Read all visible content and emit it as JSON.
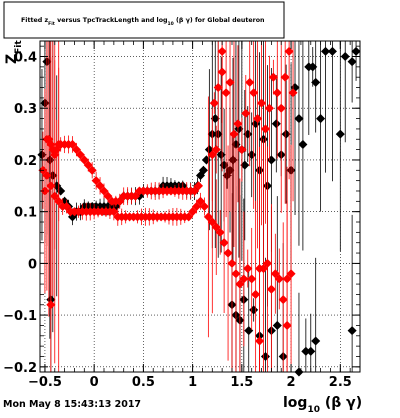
{
  "chart_data": {
    "type": "scatter",
    "title_parts": {
      "a": "Fitted  z",
      "sub": "Fit",
      "b": "  versus  TpcTrackLength and log",
      "sub2": "10",
      "c": " (β γ) for Global deuteron"
    },
    "ylabel_parts": {
      "main": "Z",
      "sub": "Fit"
    },
    "xlabel_parts": {
      "main": "log",
      "sub": "10",
      "rest": " (β γ)"
    },
    "xlim": [
      -0.55,
      2.7
    ],
    "ylim": [
      -0.21,
      0.43
    ],
    "x_ticks": [
      -0.5,
      0,
      0.5,
      1,
      1.5,
      2,
      2.5
    ],
    "x_tick_labels": [
      "−0.5",
      "0",
      "0.5",
      "1",
      "1.5",
      "2",
      "2.5"
    ],
    "y_ticks": [
      -0.2,
      -0.1,
      0,
      0.1,
      0.2,
      0.3,
      0.4
    ],
    "y_tick_labels": [
      "−0.2",
      "−0.1",
      "0",
      "0.1",
      "0.2",
      "0.3",
      "0.4"
    ],
    "grid": true,
    "colors": {
      "series_black": "#000000",
      "series_red": "#ff0000",
      "frame": "#000000"
    },
    "series": [
      {
        "points": [
          [
            -0.53,
            0.21
          ],
          [
            -0.5,
            0.31
          ],
          [
            -0.48,
            0.39
          ],
          [
            -0.45,
            0.2
          ],
          [
            -0.42,
            0.17
          ],
          [
            -0.38,
            0.15
          ],
          [
            -0.34,
            0.14
          ],
          [
            -0.3,
            0.12
          ],
          [
            -0.26,
            0.11
          ],
          [
            -0.22,
            0.09
          ],
          [
            -0.18,
            0.1
          ],
          [
            -0.14,
            0.1
          ],
          [
            -0.1,
            0.11
          ],
          [
            -0.06,
            0.11
          ],
          [
            -0.02,
            0.11
          ],
          [
            0.02,
            0.11
          ],
          [
            0.06,
            0.11
          ],
          [
            0.1,
            0.11
          ],
          [
            0.14,
            0.11
          ],
          [
            0.18,
            0.11
          ],
          [
            0.22,
            0.11
          ],
          [
            0.26,
            0.12
          ],
          [
            0.3,
            0.13
          ],
          [
            0.34,
            0.13
          ],
          [
            0.38,
            0.13
          ],
          [
            0.42,
            0.13
          ],
          [
            0.46,
            0.13
          ],
          [
            0.5,
            0.14
          ],
          [
            0.54,
            0.14
          ],
          [
            0.58,
            0.14
          ],
          [
            0.62,
            0.14
          ],
          [
            0.66,
            0.14
          ],
          [
            0.7,
            0.15
          ],
          [
            0.74,
            0.15
          ],
          [
            0.78,
            0.15
          ],
          [
            0.82,
            0.15
          ],
          [
            0.86,
            0.15
          ],
          [
            0.9,
            0.15
          ],
          [
            0.94,
            0.14
          ],
          [
            0.98,
            0.14
          ],
          [
            1.02,
            0.14
          ],
          [
            1.05,
            0.15
          ],
          [
            1.08,
            0.17
          ],
          [
            1.11,
            0.18
          ],
          [
            1.14,
            0.2
          ],
          [
            1.17,
            0.22
          ],
          [
            1.2,
            0.25
          ],
          [
            1.23,
            0.28
          ],
          [
            1.26,
            0.25
          ],
          [
            1.29,
            0.21
          ],
          [
            1.32,
            0.19
          ],
          [
            1.35,
            0.17
          ],
          [
            1.38,
            0.18
          ],
          [
            1.41,
            0.2
          ],
          [
            1.44,
            0.23
          ],
          [
            1.47,
            0.26
          ],
          [
            1.5,
            0.22
          ],
          [
            1.53,
            0.19
          ],
          [
            1.56,
            0.25
          ],
          [
            1.6,
            0.21
          ],
          [
            1.64,
            0.27
          ],
          [
            1.68,
            0.18
          ],
          [
            1.72,
            0.24
          ],
          [
            1.76,
            0.15
          ],
          [
            1.8,
            0.2
          ],
          [
            1.85,
            0.27
          ],
          [
            1.9,
            0.21
          ],
          [
            1.95,
            0.25
          ],
          [
            2.0,
            0.18
          ],
          [
            2.04,
            0.34
          ],
          [
            2.08,
            0.28
          ],
          [
            2.12,
            0.23
          ],
          [
            2.18,
            0.38
          ],
          [
            2.22,
            0.38
          ],
          [
            2.25,
            0.35
          ],
          [
            2.3,
            0.28
          ],
          [
            2.35,
            0.41
          ],
          [
            2.42,
            0.41
          ],
          [
            2.5,
            0.25
          ],
          [
            2.55,
            0.4
          ],
          [
            2.62,
            0.39
          ],
          [
            2.66,
            0.41
          ],
          [
            -0.44,
            -0.07
          ],
          [
            1.4,
            -0.08
          ],
          [
            1.44,
            -0.1
          ],
          [
            1.48,
            -0.11
          ],
          [
            1.52,
            -0.07
          ],
          [
            1.57,
            -0.13
          ],
          [
            1.62,
            -0.09
          ],
          [
            1.68,
            -0.14
          ],
          [
            1.74,
            -0.18
          ],
          [
            1.8,
            -0.13
          ],
          [
            1.86,
            -0.12
          ],
          [
            1.92,
            -0.18
          ],
          [
            2.08,
            -0.21
          ],
          [
            2.15,
            -0.17
          ],
          [
            2.2,
            -0.17
          ],
          [
            2.25,
            -0.15
          ],
          [
            2.62,
            -0.13
          ]
        ]
      },
      {
        "points": [
          [
            -0.52,
            0.18
          ],
          [
            -0.5,
            0.14
          ],
          [
            -0.48,
            0.24
          ],
          [
            -0.46,
            0.24
          ],
          [
            -0.44,
            0.23
          ],
          [
            -0.42,
            0.22
          ],
          [
            -0.4,
            0.21
          ],
          [
            -0.38,
            0.22
          ],
          [
            -0.36,
            0.23
          ],
          [
            -0.34,
            0.23
          ],
          [
            -0.3,
            0.23
          ],
          [
            -0.26,
            0.23
          ],
          [
            -0.22,
            0.23
          ],
          [
            -0.18,
            0.22
          ],
          [
            -0.14,
            0.21
          ],
          [
            -0.1,
            0.2
          ],
          [
            -0.06,
            0.19
          ],
          [
            -0.02,
            0.18
          ],
          [
            0.02,
            0.16
          ],
          [
            0.06,
            0.15
          ],
          [
            0.1,
            0.14
          ],
          [
            0.14,
            0.13
          ],
          [
            0.18,
            0.12
          ],
          [
            0.22,
            0.12
          ],
          [
            0.26,
            0.12
          ],
          [
            0.3,
            0.13
          ],
          [
            0.34,
            0.13
          ],
          [
            0.38,
            0.13
          ],
          [
            0.42,
            0.13
          ],
          [
            0.46,
            0.14
          ],
          [
            0.5,
            0.14
          ],
          [
            0.54,
            0.14
          ],
          [
            0.58,
            0.14
          ],
          [
            0.62,
            0.14
          ],
          [
            0.66,
            0.14
          ],
          [
            0.7,
            0.14
          ],
          [
            0.74,
            0.14
          ],
          [
            0.78,
            0.14
          ],
          [
            0.82,
            0.14
          ],
          [
            0.86,
            0.14
          ],
          [
            0.9,
            0.14
          ],
          [
            0.94,
            0.14
          ],
          [
            0.98,
            0.14
          ],
          [
            1.02,
            0.14
          ],
          [
            1.06,
            0.15
          ],
          [
            -0.48,
            0.17
          ],
          [
            -0.44,
            0.15
          ],
          [
            -0.4,
            0.13
          ],
          [
            -0.36,
            0.12
          ],
          [
            -0.32,
            0.11
          ],
          [
            -0.28,
            0.11
          ],
          [
            -0.24,
            0.1
          ],
          [
            -0.2,
            0.1
          ],
          [
            -0.16,
            0.1
          ],
          [
            -0.12,
            0.1
          ],
          [
            -0.08,
            0.1
          ],
          [
            -0.04,
            0.1
          ],
          [
            0.0,
            0.1
          ],
          [
            0.04,
            0.1
          ],
          [
            0.08,
            0.1
          ],
          [
            0.12,
            0.1
          ],
          [
            0.16,
            0.1
          ],
          [
            0.2,
            0.1
          ],
          [
            0.24,
            0.09
          ],
          [
            0.28,
            0.09
          ],
          [
            0.32,
            0.09
          ],
          [
            0.36,
            0.09
          ],
          [
            0.4,
            0.09
          ],
          [
            0.44,
            0.09
          ],
          [
            0.48,
            0.09
          ],
          [
            0.52,
            0.09
          ],
          [
            0.56,
            0.09
          ],
          [
            0.6,
            0.09
          ],
          [
            0.64,
            0.09
          ],
          [
            0.68,
            0.09
          ],
          [
            0.72,
            0.09
          ],
          [
            0.76,
            0.09
          ],
          [
            0.8,
            0.09
          ],
          [
            0.84,
            0.09
          ],
          [
            0.88,
            0.09
          ],
          [
            0.92,
            0.09
          ],
          [
            0.96,
            0.09
          ],
          [
            1.0,
            0.1
          ],
          [
            1.04,
            0.11
          ],
          [
            1.08,
            0.12
          ],
          [
            1.12,
            0.11
          ],
          [
            1.16,
            0.09
          ],
          [
            1.2,
            0.08
          ],
          [
            1.24,
            0.07
          ],
          [
            1.28,
            0.06
          ],
          [
            1.32,
            0.04
          ],
          [
            1.36,
            0.02
          ],
          [
            1.4,
            0.0
          ],
          [
            1.44,
            -0.02
          ],
          [
            1.48,
            -0.04
          ],
          [
            1.52,
            -0.03
          ],
          [
            1.56,
            -0.01
          ],
          [
            1.6,
            -0.03
          ],
          [
            1.64,
            -0.06
          ],
          [
            1.68,
            -0.01
          ],
          [
            1.72,
            -0.01
          ],
          [
            1.76,
            0.0
          ],
          [
            1.8,
            -0.05
          ],
          [
            1.84,
            -0.02
          ],
          [
            1.88,
            -0.03
          ],
          [
            1.92,
            -0.07
          ],
          [
            1.96,
            -0.03
          ],
          [
            2.0,
            -0.02
          ],
          [
            1.96,
            -0.12
          ],
          [
            1.68,
            -0.15
          ],
          [
            -0.44,
            -0.08
          ],
          [
            1.22,
            0.31
          ],
          [
            1.26,
            0.34
          ],
          [
            1.3,
            0.37
          ],
          [
            1.34,
            0.33
          ],
          [
            1.38,
            0.35
          ],
          [
            1.42,
            0.25
          ],
          [
            1.46,
            0.27
          ],
          [
            1.5,
            0.22
          ],
          [
            1.54,
            0.29
          ],
          [
            1.58,
            0.35
          ],
          [
            1.62,
            0.33
          ],
          [
            1.66,
            0.28
          ],
          [
            1.7,
            0.31
          ],
          [
            1.74,
            0.26
          ],
          [
            1.78,
            0.3
          ],
          [
            1.82,
            0.36
          ],
          [
            1.86,
            0.33
          ],
          [
            1.9,
            0.3
          ],
          [
            1.94,
            0.36
          ],
          [
            1.98,
            0.41
          ],
          [
            2.02,
            0.33
          ],
          [
            1.3,
            0.41
          ],
          [
            1.24,
            0.22
          ],
          [
            1.2,
            0.21
          ]
        ]
      }
    ]
  },
  "status": {
    "datetime": "Mon May  8 15:43:13 2017"
  }
}
